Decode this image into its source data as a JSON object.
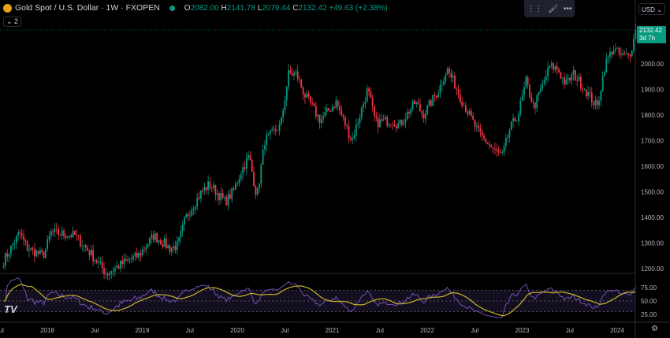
{
  "header": {
    "symbol": "Gold Spot / U.S. Dollar · 1W · FXOPEN",
    "open_label": "O",
    "open": "2082.00",
    "high_label": "H",
    "high": "2141.78",
    "low_label": "L",
    "low": "2079.44",
    "close_label": "C",
    "close": "2132.42",
    "change": "+49.63 (+2.38%)",
    "indicators_count": "2"
  },
  "toolbar": {
    "drag": "⋮⋮",
    "brush": "🖌",
    "more": "•••"
  },
  "currency": "USD",
  "last_price": {
    "value": "2132.42",
    "countdown": "3d 7h"
  },
  "colors": {
    "up": "#089981",
    "down": "#f23645",
    "rsi": "#7e57c2",
    "rsi_ma": "#c9b42a"
  },
  "chart_data": [
    {
      "type": "candlestick",
      "title": "Gold Spot / U.S. Dollar",
      "ylim": [
        1150,
        2150
      ],
      "y_ticks": [
        "2000.00",
        "1900.00",
        "1800.00",
        "1700.00",
        "1600.00",
        "1500.00",
        "1400.00",
        "1300.00",
        "1200.00"
      ],
      "x_ticks": [
        "Jul",
        "2018",
        "Jul",
        "2019",
        "Jul",
        "2020",
        "Jul",
        "2021",
        "Jul",
        "2022",
        "Jul",
        "2023",
        "Jul",
        "2024"
      ],
      "approx_closes": [
        [
          "2017-07",
          1230
        ],
        [
          "2017-09",
          1340
        ],
        [
          "2017-10",
          1280
        ],
        [
          "2017-12",
          1250
        ],
        [
          "2018-01",
          1340
        ],
        [
          "2018-04",
          1330
        ],
        [
          "2018-06",
          1260
        ],
        [
          "2018-08",
          1180
        ],
        [
          "2018-10",
          1220
        ],
        [
          "2018-12",
          1250
        ],
        [
          "2019-01",
          1290
        ],
        [
          "2019-02",
          1330
        ],
        [
          "2019-04",
          1280
        ],
        [
          "2019-05",
          1290
        ],
        [
          "2019-06",
          1400
        ],
        [
          "2019-08",
          1500
        ],
        [
          "2019-09",
          1530
        ],
        [
          "2019-11",
          1460
        ],
        [
          "2019-12",
          1500
        ],
        [
          "2020-01",
          1580
        ],
        [
          "2020-02",
          1640
        ],
        [
          "2020-03",
          1480
        ],
        [
          "2020-04",
          1700
        ],
        [
          "2020-06",
          1760
        ],
        [
          "2020-07",
          1960
        ],
        [
          "2020-08",
          1960
        ],
        [
          "2020-09",
          1880
        ],
        [
          "2020-11",
          1780
        ],
        [
          "2021-01",
          1850
        ],
        [
          "2021-03",
          1700
        ],
        [
          "2021-05",
          1900
        ],
        [
          "2021-06",
          1770
        ],
        [
          "2021-08",
          1780
        ],
        [
          "2021-09",
          1760
        ],
        [
          "2021-11",
          1850
        ],
        [
          "2021-12",
          1800
        ],
        [
          "2022-02",
          1900
        ],
        [
          "2022-03",
          1980
        ],
        [
          "2022-04",
          1920
        ],
        [
          "2022-05",
          1850
        ],
        [
          "2022-07",
          1730
        ],
        [
          "2022-09",
          1660
        ],
        [
          "2022-10",
          1640
        ],
        [
          "2022-11",
          1750
        ],
        [
          "2022-12",
          1800
        ],
        [
          "2023-01",
          1930
        ],
        [
          "2023-02",
          1830
        ],
        [
          "2023-04",
          1990
        ],
        [
          "2023-05",
          1980
        ],
        [
          "2023-06",
          1920
        ],
        [
          "2023-07",
          1960
        ],
        [
          "2023-08",
          1920
        ],
        [
          "2023-10",
          1830
        ],
        [
          "2023-11",
          2000
        ],
        [
          "2023-12",
          2060
        ],
        [
          "2024-01",
          2030
        ],
        [
          "2024-02",
          2030
        ],
        [
          "2024-03",
          2132
        ]
      ]
    },
    {
      "type": "line",
      "title": "",
      "ylim": [
        15,
        90
      ],
      "y_ticks": [
        "75.00",
        "50.00",
        "25.00"
      ],
      "bands": [
        70,
        50,
        30
      ],
      "series": [
        {
          "values": "RSI"
        },
        {
          "values": "RSI MA"
        }
      ]
    }
  ]
}
